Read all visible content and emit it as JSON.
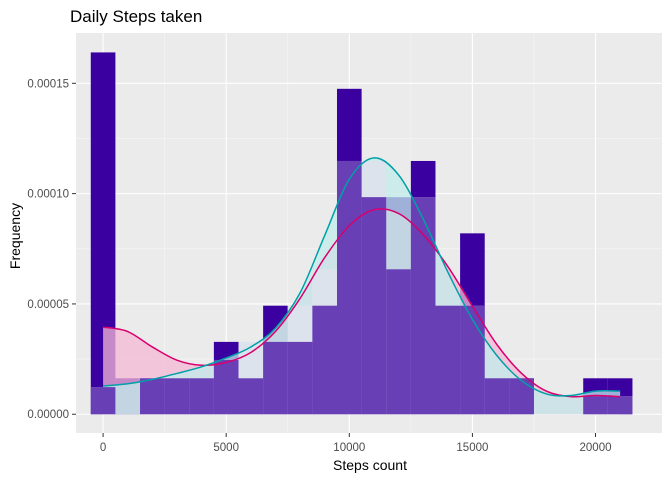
{
  "chart_data": {
    "type": "bar",
    "title": "Daily Steps taken",
    "xlabel": "Steps count",
    "ylabel": "Frequency",
    "xlim": [
      -1100,
      22700
    ],
    "ylim": [
      -8.5e-06,
      0.0001728
    ],
    "x_ticks": [
      0,
      5000,
      10000,
      15000,
      20000
    ],
    "x_tick_labels": [
      "0",
      "5000",
      "10000",
      "15000",
      "20000"
    ],
    "y_ticks": [
      0,
      5e-05,
      0.0001,
      0.00015
    ],
    "y_tick_labels": [
      "0.00000",
      "0.00005",
      "0.00010",
      "0.00015"
    ],
    "grid": true,
    "bin_width": 1000,
    "series": [
      {
        "kind": "histogram",
        "color": "#3A00A0",
        "bins_center": [
          0,
          1000,
          2000,
          3000,
          4000,
          5000,
          6000,
          7000,
          8000,
          9000,
          10000,
          11000,
          12000,
          13000,
          14000,
          15000,
          16000,
          17000,
          18000,
          19000,
          20000,
          21000
        ],
        "values": [
          0.000164,
          1.63e-05,
          1.63e-05,
          1.63e-05,
          1.63e-05,
          3.28e-05,
          1.63e-05,
          4.92e-05,
          3.28e-05,
          4.92e-05,
          0.0001475,
          9.84e-05,
          9.84e-05,
          0.0001148,
          4.92e-05,
          8.2e-05,
          1.63e-05,
          1.63e-05,
          0.0,
          0.0,
          1.63e-05,
          1.63e-05
        ]
      },
      {
        "kind": "histogram",
        "color": "#DDE3EC",
        "bins_center": [
          0,
          1000,
          2000,
          3000,
          4000,
          5000,
          6000,
          7000,
          8000,
          9000,
          10000,
          11000,
          12000,
          13000,
          14000,
          15000,
          16000,
          17000,
          18000,
          19000,
          20000,
          21000
        ],
        "values": [
          1.23e-05,
          0.0,
          1.63e-05,
          1.63e-05,
          1.63e-05,
          2.46e-05,
          3.28e-05,
          3.28e-05,
          4.92e-05,
          6.57e-05,
          0.0001148,
          0.0001148,
          6.57e-05,
          9.84e-05,
          4.92e-05,
          4.92e-05,
          1.63e-05,
          1.63e-05,
          0.0,
          0.0,
          8.2e-06,
          8.2e-06
        ]
      },
      {
        "kind": "density",
        "color": "#D8006E",
        "fill": "#F5B8D6",
        "x": [
          0,
          1000,
          2000,
          3000,
          4000,
          5000,
          6000,
          7000,
          8000,
          9000,
          10000,
          11000,
          12000,
          13000,
          14000,
          15000,
          16000,
          17000,
          18000,
          19000,
          20000,
          21000
        ],
        "y": [
          3.95e-05,
          3.75e-05,
          3.05e-05,
          2.45e-05,
          2.22e-05,
          2.35e-05,
          2.8e-05,
          3.75e-05,
          5.25e-05,
          7.1e-05,
          8.55e-05,
          9.27e-05,
          9.1e-05,
          8.15e-05,
          6.7e-05,
          4.9e-05,
          3.15e-05,
          1.85e-05,
          1.05e-05,
          8e-06,
          8.5e-06,
          8e-06
        ]
      },
      {
        "kind": "density",
        "color": "#00A0A8",
        "fill": "#C2ECEC",
        "x": [
          0,
          1000,
          2000,
          3000,
          4000,
          5000,
          6000,
          7000,
          8000,
          9000,
          10000,
          11000,
          12000,
          13000,
          14000,
          15000,
          16000,
          17000,
          18000,
          19000,
          20000,
          21000
        ],
        "y": [
          1.28e-05,
          1.38e-05,
          1.58e-05,
          1.85e-05,
          2.15e-05,
          2.55e-05,
          3.05e-05,
          3.9e-05,
          5.5e-05,
          8.1e-05,
          0.0001065,
          0.0001162,
          0.0001085,
          8.85e-05,
          6.45e-05,
          4.3e-05,
          2.65e-05,
          1.52e-05,
          9.2e-06,
          8.5e-06,
          1.05e-05,
          1.05e-05
        ]
      }
    ]
  }
}
